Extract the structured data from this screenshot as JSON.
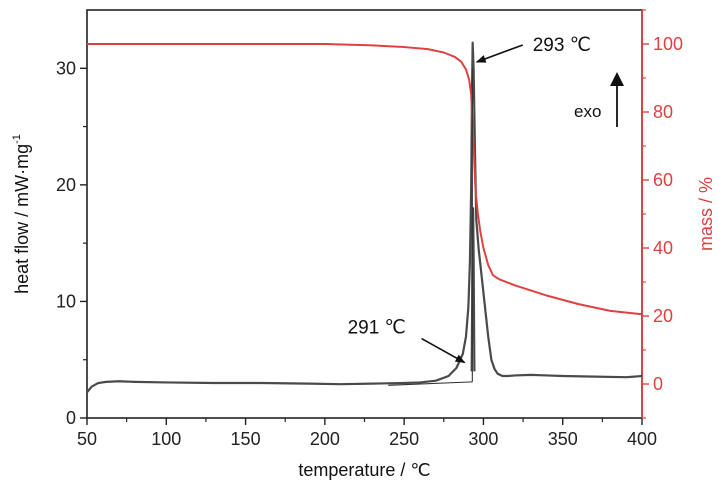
{
  "chart_data": {
    "type": "line",
    "xlabel": "temperature / ℃",
    "ylabel_left": "heat flow / mW·mg",
    "ylabel_left_superscript": "-1",
    "ylabel_right": "mass / %",
    "xlim": [
      50,
      400
    ],
    "ylim_left": [
      0,
      35
    ],
    "ylim_right": [
      -10,
      110
    ],
    "x_ticks": [
      50,
      100,
      150,
      200,
      250,
      300,
      350,
      400
    ],
    "y_left_ticks": [
      0,
      10,
      20,
      30
    ],
    "y_right_ticks": [
      0,
      20,
      40,
      60,
      80,
      100
    ],
    "grid": false,
    "colors": {
      "heat_flow": "#4a4a4a",
      "mass": "#e04040",
      "right_axis": "#e04040",
      "left_axis": "#222222",
      "annotation": "#111111"
    },
    "series": [
      {
        "axis": "left",
        "color": "#4a4a4a",
        "x": [
          50,
          53,
          57,
          62,
          70,
          80,
          100,
          130,
          160,
          190,
          210,
          230,
          250,
          260,
          270,
          278,
          283,
          287,
          289,
          290.5,
          291.5,
          292.3,
          292.8,
          293.2,
          293.8,
          294.3,
          294.8,
          295.5,
          297,
          299,
          301,
          303,
          305,
          307,
          309,
          312,
          315,
          320,
          330,
          340,
          350,
          370,
          390,
          400
        ],
        "values": [
          2.2,
          2.7,
          3.0,
          3.1,
          3.15,
          3.1,
          3.05,
          3.0,
          3.0,
          2.95,
          2.9,
          2.95,
          3.0,
          3.05,
          3.2,
          3.6,
          4.3,
          5.5,
          7.0,
          9.5,
          13.5,
          20.0,
          28.0,
          32.2,
          30.0,
          26.0,
          22.0,
          17.0,
          14.5,
          12.0,
          9.5,
          7.0,
          5.0,
          4.2,
          3.8,
          3.6,
          3.6,
          3.65,
          3.7,
          3.65,
          3.6,
          3.55,
          3.5,
          3.6
        ]
      },
      {
        "axis": "right",
        "color": "#e04040",
        "x": [
          50,
          100,
          150,
          200,
          230,
          250,
          265,
          275,
          282,
          286,
          289,
          291,
          292.3,
          293,
          294,
          295,
          296.5,
          298,
          300,
          303,
          306,
          310,
          320,
          340,
          360,
          380,
          400
        ],
        "values": [
          100,
          100,
          100,
          100,
          99.6,
          99.1,
          98.5,
          97.5,
          96.2,
          94.8,
          92.5,
          89.5,
          85.0,
          78.0,
          68.0,
          57.0,
          50.0,
          45.0,
          40.0,
          35.0,
          32.0,
          30.8,
          29.0,
          26.0,
          23.5,
          21.5,
          20.5
        ]
      },
      {
        "axis": "left",
        "color": "#4a4a4a",
        "x": [
          292.6,
          292.9,
          293.1,
          293.5,
          293.8,
          294.1,
          294.3
        ],
        "values": [
          4.0,
          10.0,
          17.0,
          18.0,
          14.0,
          8.0,
          4.0
        ]
      }
    ],
    "baseline": {
      "x": [
        240,
        293
      ],
      "values": [
        2.8,
        3.1
      ]
    },
    "onset_tangent": {
      "x": [
        280,
        294
      ],
      "values": [
        3.2,
        2.8
      ]
    },
    "annotations": {
      "peak_label": "293 ℃",
      "onset_label": "291 ℃",
      "exo_label": "exo",
      "peak_point": {
        "x": 294.5,
        "y": 32.0
      },
      "onset_point": {
        "x": 290,
        "y": 4.5
      }
    }
  }
}
